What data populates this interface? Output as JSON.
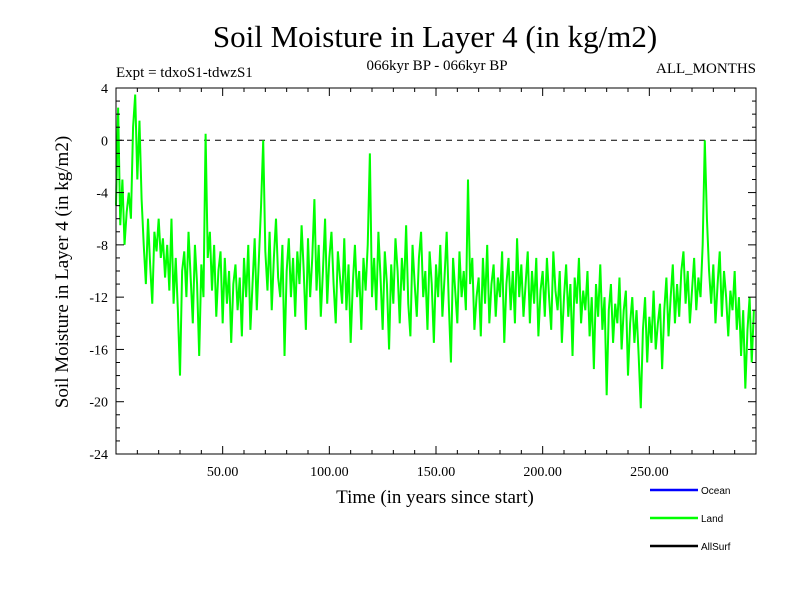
{
  "chart_data": {
    "type": "line",
    "title": "Soil Moisture in Layer 4 (in kg/m2)",
    "subtitle_left": "Expt = tdxoS1-tdwzS1",
    "subtitle_center": "066kyr BP - 066kyr BP",
    "subtitle_right": "ALL_MONTHS",
    "xlabel": "Time (in years since start)",
    "ylabel": "Soil Moisture in Layer 4 (in kg/m2)",
    "xlim": [
      0,
      300
    ],
    "ylim": [
      -24,
      4
    ],
    "x_ticks": [
      50,
      100,
      150,
      200,
      250
    ],
    "x_tick_labels": [
      "50.00",
      "100.00",
      "150.00",
      "200.00",
      "250.00"
    ],
    "y_ticks": [
      4,
      0,
      -4,
      -8,
      -12,
      -16,
      -20,
      -24
    ],
    "y_tick_labels": [
      "4",
      "0",
      "-4",
      "-8",
      "-12",
      "-16",
      "-20",
      "-24"
    ],
    "reference_line": 0,
    "legend": [
      {
        "name": "Ocean",
        "color": "#0000ff"
      },
      {
        "name": "Land",
        "color": "#00ff00"
      },
      {
        "name": "AllSurf",
        "color": "#000000"
      }
    ],
    "series": [
      {
        "name": "Land",
        "color": "#00ff00",
        "x_start": 0,
        "x_step": 1,
        "values": [
          -5.0,
          2.5,
          -6.5,
          -3.0,
          -8.0,
          -5.5,
          -4.0,
          -6.0,
          1.0,
          3.5,
          -3.0,
          1.5,
          -4.5,
          -8.0,
          -11.0,
          -6.0,
          -9.5,
          -12.5,
          -7.0,
          -8.5,
          -6.0,
          -9.0,
          -7.5,
          -10.5,
          -8.0,
          -11.5,
          -6.0,
          -12.5,
          -9.0,
          -13.0,
          -18.0,
          -10.0,
          -8.5,
          -12.0,
          -7.0,
          -10.5,
          -14.0,
          -8.0,
          -11.0,
          -16.5,
          -9.5,
          -12.0,
          0.5,
          -9.0,
          -7.0,
          -11.5,
          -8.0,
          -13.5,
          -10.0,
          -8.5,
          -14.0,
          -9.0,
          -12.5,
          -10.0,
          -15.5,
          -11.0,
          -9.5,
          -13.0,
          -10.5,
          -15.0,
          -9.0,
          -12.0,
          -8.0,
          -14.5,
          -11.0,
          -7.5,
          -13.0,
          -9.0,
          -5.0,
          0.0,
          -8.5,
          -11.5,
          -7.0,
          -13.0,
          -9.0,
          -6.0,
          -10.5,
          -12.0,
          -8.0,
          -16.5,
          -10.0,
          -7.5,
          -12.0,
          -9.0,
          -13.5,
          -8.5,
          -11.0,
          -6.5,
          -10.0,
          -14.5,
          -7.5,
          -12.0,
          -9.0,
          -4.5,
          -11.5,
          -8.0,
          -13.5,
          -10.0,
          -6.0,
          -12.5,
          -9.0,
          -7.0,
          -11.0,
          -14.0,
          -8.5,
          -10.5,
          -12.5,
          -7.5,
          -13.0,
          -9.5,
          -15.5,
          -11.0,
          -8.0,
          -12.0,
          -10.0,
          -14.5,
          -9.0,
          -11.5,
          -8.0,
          -1.0,
          -12.0,
          -9.0,
          -13.0,
          -7.0,
          -10.5,
          -14.5,
          -8.5,
          -11.0,
          -16.0,
          -9.5,
          -12.5,
          -7.5,
          -10.0,
          -14.0,
          -9.0,
          -11.5,
          -6.5,
          -12.5,
          -15.0,
          -8.0,
          -11.0,
          -13.5,
          -9.0,
          -7.0,
          -12.0,
          -10.0,
          -14.5,
          -8.5,
          -11.0,
          -15.5,
          -9.5,
          -12.0,
          -8.0,
          -13.5,
          -10.5,
          -7.0,
          -12.5,
          -17.0,
          -9.0,
          -11.5,
          -14.0,
          -8.5,
          -12.0,
          -10.0,
          -13.0,
          -3.0,
          -11.0,
          -9.0,
          -14.5,
          -12.0,
          -10.5,
          -15.0,
          -9.0,
          -12.5,
          -8.0,
          -14.0,
          -11.0,
          -9.5,
          -13.5,
          -10.5,
          -12.0,
          -8.5,
          -15.5,
          -11.0,
          -9.0,
          -13.0,
          -10.0,
          -14.0,
          -7.5,
          -12.0,
          -9.5,
          -13.5,
          -11.0,
          -8.5,
          -14.0,
          -10.0,
          -12.5,
          -9.0,
          -15.0,
          -11.5,
          -10.0,
          -13.5,
          -9.0,
          -12.0,
          -14.5,
          -8.5,
          -11.5,
          -13.0,
          -10.0,
          -15.5,
          -12.0,
          -9.5,
          -13.5,
          -11.0,
          -16.5,
          -10.5,
          -12.5,
          -9.0,
          -14.0,
          -11.5,
          -13.0,
          -10.0,
          -15.0,
          -12.0,
          -17.5,
          -11.0,
          -13.5,
          -9.5,
          -14.5,
          -12.0,
          -19.5,
          -13.0,
          -11.0,
          -15.5,
          -12.5,
          -14.0,
          -10.5,
          -16.0,
          -13.0,
          -11.5,
          -18.0,
          -14.0,
          -12.0,
          -15.5,
          -13.0,
          -16.5,
          -20.5,
          -14.5,
          -12.0,
          -17.0,
          -13.5,
          -15.5,
          -11.5,
          -16.0,
          -14.0,
          -12.5,
          -17.5,
          -13.0,
          -10.5,
          -15.0,
          -12.0,
          -9.5,
          -14.0,
          -11.0,
          -13.5,
          -10.0,
          -8.5,
          -12.5,
          -10.0,
          -14.0,
          -11.5,
          -9.0,
          -13.0,
          -10.5,
          -12.0,
          -8.0,
          0.0,
          -6.0,
          -10.0,
          -12.5,
          -9.5,
          -14.0,
          -11.0,
          -8.5,
          -13.5,
          -10.0,
          -12.0,
          -15.0,
          -11.5,
          -13.0,
          -10.0,
          -14.5,
          -12.0,
          -16.5,
          -13.0,
          -19.0,
          -14.5,
          -12.0,
          -17.0,
          -13.0
        ]
      }
    ]
  }
}
